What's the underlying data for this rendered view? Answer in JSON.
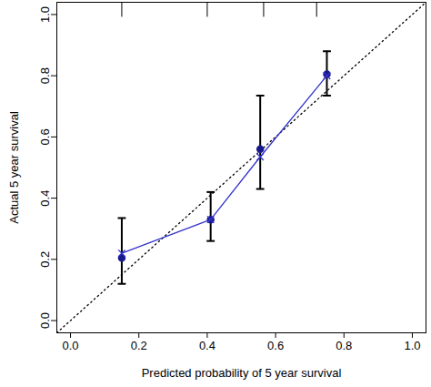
{
  "chart_data": {
    "type": "scatter",
    "x_label": "Predicted probability of 5 year survival",
    "y_label": "Actual 5 year survival",
    "x": [
      0.15,
      0.41,
      0.555,
      0.75
    ],
    "series": [
      {
        "marker": "circle",
        "color": "#1a1a8c",
        "values": [
          0.205,
          0.33,
          0.56,
          0.805
        ],
        "error_low": [
          0.12,
          0.26,
          0.43,
          0.735
        ],
        "error_high": [
          0.335,
          0.42,
          0.735,
          0.88
        ]
      },
      {
        "marker": "x",
        "line_style": "solid",
        "color": "#3333cc",
        "values": [
          0.22,
          0.33,
          0.535,
          0.8
        ]
      }
    ],
    "rug": [
      0.15,
      0.4,
      0.565,
      0.72
    ],
    "xlim": [
      -0.04,
      1.04
    ],
    "ylim": [
      -0.04,
      1.04
    ],
    "xticks": [
      {
        "value": 0,
        "label": "0.0"
      },
      {
        "value": 0.2,
        "label": "0.2"
      },
      {
        "value": 0.4,
        "label": "0.4"
      },
      {
        "value": 0.6,
        "label": "0.6"
      },
      {
        "value": 0.8,
        "label": "0.8"
      },
      {
        "value": 1,
        "label": "1.0"
      }
    ],
    "yticks": [
      {
        "value": 0,
        "label": "0.0"
      },
      {
        "value": 0.2,
        "label": "0.2"
      },
      {
        "value": 0.4,
        "label": "0.4"
      },
      {
        "value": 0.6,
        "label": "0.6"
      },
      {
        "value": 0.8,
        "label": "0.8"
      },
      {
        "value": 1,
        "label": "1.0"
      }
    ]
  }
}
